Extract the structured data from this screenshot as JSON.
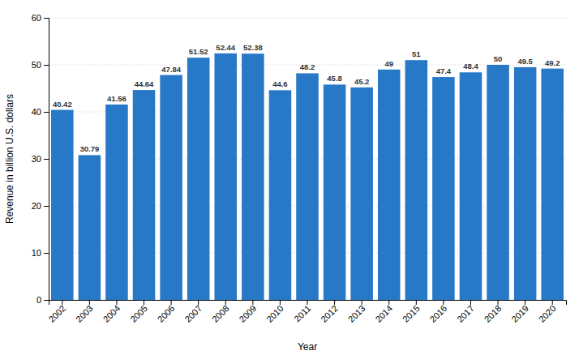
{
  "chart_data": {
    "type": "bar",
    "categories": [
      "2002",
      "2003",
      "2004",
      "2005",
      "2006",
      "2007",
      "2008",
      "2009",
      "2010",
      "2011",
      "2012",
      "2013",
      "2014",
      "2015",
      "2016",
      "2017",
      "2018",
      "2019",
      "2020"
    ],
    "values": [
      40.42,
      30.79,
      41.56,
      44.64,
      47.84,
      51.52,
      52.44,
      52.38,
      44.6,
      48.2,
      45.8,
      45.2,
      49,
      51,
      47.4,
      48.4,
      50,
      49.5,
      49.2
    ],
    "color": "#2878c8",
    "xlabel": "Year",
    "ylabel": "Revenue in billion U.S. dollars",
    "ylim": [
      0,
      60
    ],
    "yticks": [
      0,
      10,
      20,
      30,
      40,
      50,
      60
    ],
    "grid": true,
    "data_labels": true
  }
}
